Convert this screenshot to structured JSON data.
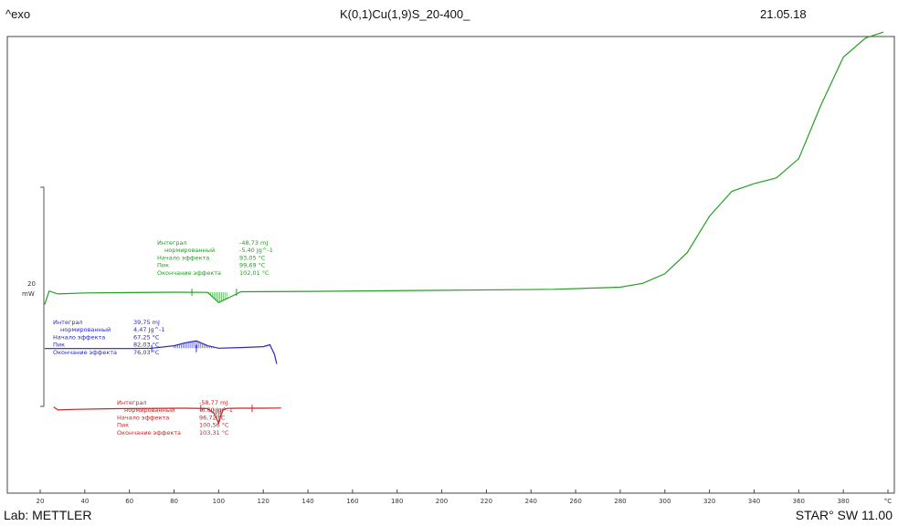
{
  "header": {
    "left_label": "^exo",
    "title": "K(0,1)Cu(1,9)S_20-400_",
    "date": "21.05.18"
  },
  "footer": {
    "lab": "Lab: METTLER",
    "software": "STAR° SW 11.00"
  },
  "chart_data": {
    "type": "line",
    "title": "K(0,1)Cu(1,9)S_20-400_",
    "xlabel": "°C",
    "ylabel": "",
    "xlim": [
      20,
      400
    ],
    "x_ticks": [
      "20",
      "40",
      "60",
      "80",
      "100",
      "120",
      "140",
      "160",
      "180",
      "200",
      "220",
      "240",
      "260",
      "280",
      "300",
      "320",
      "340",
      "360",
      "380",
      "°C"
    ],
    "scale_bar": {
      "value": "20",
      "unit": "mW"
    },
    "grid": false,
    "legend": "none",
    "series": [
      {
        "color": "#22a022",
        "x": [
          22,
          24,
          28,
          40,
          60,
          80,
          95,
          100,
          110,
          140,
          200,
          250,
          280,
          290,
          300,
          310,
          320,
          330,
          340,
          350,
          360,
          370,
          380,
          390,
          398
        ],
        "y": [
          -4,
          3,
          1.5,
          2,
          2.2,
          2.4,
          2.3,
          -3,
          2.6,
          2.8,
          3.4,
          3.9,
          5,
          7,
          12,
          23,
          42,
          55,
          59,
          62,
          72,
          100,
          125,
          135,
          138
        ],
        "annotation": [
          {
            "label": "Интеграл",
            "value": "-48,73 mJ"
          },
          {
            "label": "нормированный",
            "value": "-5,40 Jg^-1"
          },
          {
            "label": "Начало эффекта",
            "value": "93,05 °C"
          },
          {
            "label": "Пик",
            "value": "99,69 °C"
          },
          {
            "label": "Окончание эффекта",
            "value": "102,01 °C"
          }
        ]
      },
      {
        "color": "#2828cc",
        "x": [
          22,
          40,
          60,
          70,
          80,
          85,
          90,
          95,
          100,
          110,
          120,
          123,
          125,
          126
        ],
        "y": [
          -27,
          -27,
          -27,
          -26.8,
          -25.5,
          -24,
          -23,
          -25.5,
          -26.8,
          -26.5,
          -26,
          -25,
          -30,
          -35
        ],
        "annotation": [
          {
            "label": "Интеграл",
            "value": "39,75 mJ"
          },
          {
            "label": "нормированный",
            "value": "4,47 Jg^-1"
          },
          {
            "label": "Начало эффекта",
            "value": "67,25 °C"
          },
          {
            "label": "Пик",
            "value": "82,03 °C"
          },
          {
            "label": "Окончание эффекта",
            "value": "76,03 °C"
          }
        ]
      },
      {
        "color": "#d42020",
        "x": [
          26,
          28,
          35,
          50,
          70,
          85,
          95,
          98,
          100,
          101,
          102,
          104,
          110,
          120,
          128
        ],
        "y": [
          -57.5,
          -59,
          -58.7,
          -58.4,
          -58.2,
          -58.1,
          -58.3,
          -61,
          -66,
          -62,
          -59,
          -58.2,
          -58.1,
          -58.1,
          -58
        ],
        "annotation": [
          {
            "label": "Интеграл",
            "value": "-58,77 mJ"
          },
          {
            "label": "нормированный",
            "value": "-6,60 Jg^-1"
          },
          {
            "label": "Начало эффекта",
            "value": "96,72 °C"
          },
          {
            "label": "Пик",
            "value": "100,56 °C"
          },
          {
            "label": "Окончание эффекта",
            "value": "103,31 °C"
          }
        ]
      }
    ]
  }
}
